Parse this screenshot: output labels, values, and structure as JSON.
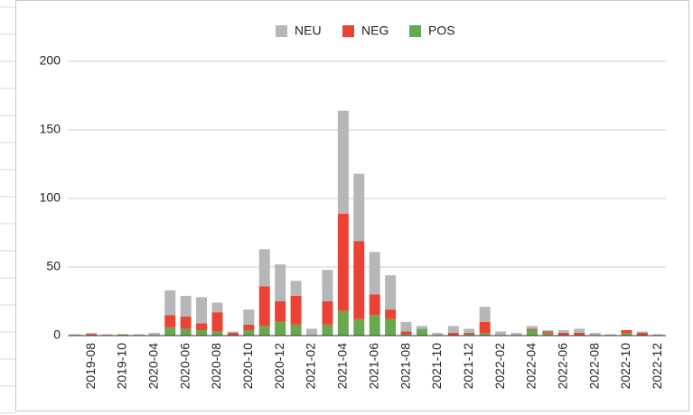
{
  "chart_data": {
    "type": "bar",
    "stacked": true,
    "categories": [
      null,
      "2019-08",
      null,
      "2019-10",
      null,
      "2020-04",
      null,
      "2020-06",
      null,
      "2020-08",
      null,
      "2020-10",
      null,
      "2020-12",
      null,
      "2021-02",
      null,
      "2021-04",
      null,
      "2021-06",
      null,
      "2021-08",
      null,
      "2021-10",
      null,
      "2021-12",
      null,
      "2022-02",
      null,
      "2022-04",
      null,
      "2022-06",
      null,
      "2022-08",
      null,
      "2022-10",
      null,
      "2022-12"
    ],
    "series": [
      {
        "name": "NEU",
        "color": "#b7b7b7",
        "values": [
          1,
          1,
          1,
          0,
          1,
          2,
          18,
          15,
          19,
          7,
          1,
          11,
          27,
          27,
          11,
          5,
          23,
          75,
          49,
          31,
          25,
          7,
          2,
          2,
          5,
          3,
          11,
          3,
          2,
          2,
          1,
          2,
          3,
          2,
          1,
          0,
          1,
          1
        ]
      },
      {
        "name": "NEG",
        "color": "#ea4335",
        "values": [
          0,
          1,
          0,
          0,
          0,
          0,
          9,
          9,
          5,
          14,
          2,
          4,
          29,
          15,
          21,
          0,
          17,
          71,
          57,
          15,
          7,
          2,
          0,
          0,
          2,
          1,
          8,
          0,
          0,
          1,
          1,
          2,
          2,
          0,
          0,
          2,
          2,
          0
        ]
      },
      {
        "name": "POS",
        "color": "#6aa84f",
        "values": [
          0,
          0,
          0,
          1,
          0,
          0,
          6,
          5,
          4,
          3,
          0,
          4,
          7,
          10,
          8,
          0,
          8,
          18,
          12,
          15,
          12,
          1,
          5,
          0,
          0,
          1,
          2,
          0,
          0,
          4,
          2,
          0,
          0,
          0,
          0,
          2,
          0,
          0
        ]
      }
    ],
    "ylim": [
      0,
      200
    ],
    "yticks": [
      0,
      50,
      100,
      150,
      200
    ],
    "grid": true,
    "legend": "top"
  }
}
